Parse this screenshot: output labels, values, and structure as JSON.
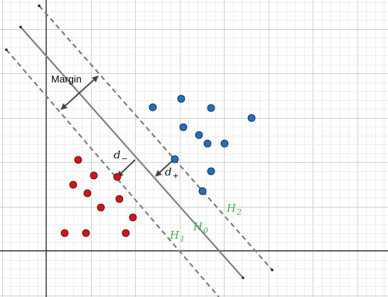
{
  "colors": {
    "background": "#ffffff",
    "grid_minor": "#ececec",
    "grid_major": "#cfcfcf",
    "axis": "#111111",
    "hyperplane": "#7b7b7b",
    "margin_line": "#7b7b7b",
    "arrow": "#444444",
    "class_positive": "#1f6fc9",
    "class_negative": "#e01010",
    "point_stroke": "#1a1a1a",
    "label_hyperplane": "#3cb44b"
  },
  "labels": {
    "margin": "Margin",
    "d_minus": {
      "base": "d",
      "sub": "−"
    },
    "d_plus": {
      "base": "d",
      "sub": "+"
    },
    "h0": {
      "base": "H",
      "sub": "0"
    },
    "h1": {
      "base": "H",
      "sub": "1"
    },
    "h2": {
      "base": "H",
      "sub": "2"
    }
  },
  "icons": [
    "margin-double-arrow-icon",
    "d-minus-arrow-icon",
    "d-plus-arrow-icon"
  ]
}
